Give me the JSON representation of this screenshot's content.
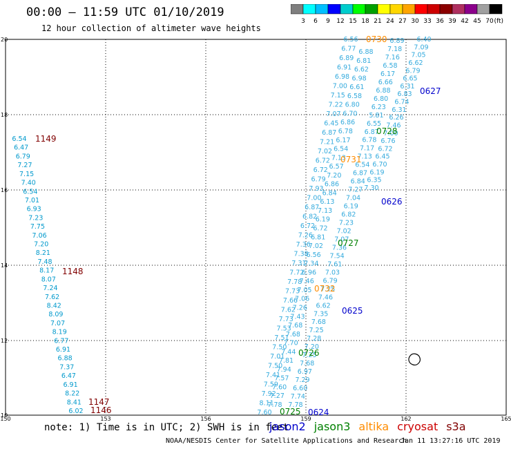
{
  "header": {
    "title": "00:00 – 11:59 UTC 01/10/2019",
    "subtitle": "12 hour collection of altimeter wave heights"
  },
  "colorbar": {
    "unit": "(ft)",
    "colors": [
      "#7f7f7f",
      "#00ffff",
      "#00bfff",
      "#0000ff",
      "#00cdcd",
      "#00ff00",
      "#00a000",
      "#ffff00",
      "#ffd700",
      "#ffa500",
      "#ff0000",
      "#cd0000",
      "#8b0000",
      "#b03060",
      "#8b008b",
      "#a0a0a0",
      "#000000"
    ],
    "labels": [
      "3",
      "6",
      "9",
      "12",
      "15",
      "18",
      "21",
      "24",
      "27",
      "30",
      "33",
      "36",
      "39",
      "42",
      "45",
      "70"
    ]
  },
  "axes": {
    "x_ticks": [
      "150",
      "153",
      "156",
      "159",
      "162",
      "165"
    ],
    "y_ticks": [
      "20",
      "18",
      "16",
      "14",
      "12",
      "10"
    ]
  },
  "swaths": {
    "west": {
      "color": "#0099cc",
      "values": [
        "6.54",
        "6.47",
        "6.79",
        "7.27",
        "7.15",
        "7.40",
        "6.54",
        "7.01",
        "6.93",
        "7.23",
        "7.75",
        "7.06",
        "7.20",
        "8.21",
        "7.48",
        "8.17",
        "8.07",
        "7.24",
        "7.62",
        "8.42",
        "8.09",
        "7.07",
        "8.19",
        "6.77",
        "6.91",
        "6.88",
        "7.37",
        "6.47",
        "6.91",
        "8.22",
        "8.41",
        "6.02"
      ]
    },
    "a": {
      "color": "#33aadd",
      "values": [
        "6.56",
        "6.77",
        "6.89",
        "6.91",
        "6.98",
        "7.00",
        "7.15",
        "7.22",
        "7.07",
        "6.45",
        "6.87",
        "7.21",
        "7.02",
        "6.72",
        "6.72",
        "6.79",
        "7.93",
        "7.00",
        "6.87",
        "6.82",
        "6.72",
        "7.26",
        "7.36",
        "7.38",
        "7.31",
        "7.72",
        "7.78",
        "7.73",
        "7.66",
        "7.62",
        "7.73",
        "7.53",
        "7.51",
        "7.50",
        "7.01",
        "7.50",
        "7.41",
        "7.59",
        "7.92",
        "8.11",
        "7.60"
      ]
    },
    "b": {
      "color": "#33aadd",
      "values": [
        "6.88",
        "6.81",
        "6.62",
        "6.98",
        "6.61",
        "6.58",
        "6.80",
        "6.70",
        "6.86",
        "6.78",
        "6.17",
        "6.54",
        "7.13",
        "6.57",
        "7.20",
        "6.86",
        "6.84",
        "6.13",
        "7.13",
        "6.19",
        "6.72",
        "6.81",
        "7.02",
        "6.56",
        "7.34",
        "6.96",
        "7.46",
        "7.05",
        "7.06",
        "7.26",
        "7.43",
        "7.68",
        "7.68",
        "7.70",
        "7.44",
        "7.81",
        "7.94",
        "7.57",
        "7.60",
        "7.27",
        "7.78"
      ]
    },
    "c": {
      "color": "#33aadd",
      "values": [
        "6.89",
        "7.18",
        "7.16",
        "6.58",
        "6.17",
        "6.66",
        "6.88",
        "6.80",
        "6.23",
        "5.81",
        "6.55",
        "6.87",
        "6.78",
        "7.17",
        "7.13",
        "6.54",
        "6.87",
        "6.84",
        "7.27",
        "7.04",
        "6.19",
        "6.82",
        "7.23",
        "7.02",
        "7.07",
        "7.36",
        "7.54",
        "7.61",
        "7.03",
        "6.79",
        "7.25",
        "7.46",
        "6.62",
        "7.35",
        "7.68",
        "7.25",
        "7.28",
        "7.20",
        "7.25",
        "7.68",
        "6.97",
        "7.29",
        "6.60",
        "7.74",
        "7.78"
      ]
    },
    "d": {
      "color": "#33aadd",
      "values": [
        "6.40",
        "7.09",
        "7.05",
        "6.62",
        "6.79",
        "6.65",
        "6.31",
        "6.83",
        "6.74",
        "6.31",
        "6.26",
        "7.46",
        "7.00",
        "6.76",
        "6.72",
        "6.45",
        "6.70",
        "6.19",
        "6.35",
        "7.30"
      ]
    }
  },
  "passes": [
    {
      "label": "1149",
      "color": "#800000"
    },
    {
      "label": "1148",
      "color": "#800000"
    },
    {
      "label": "1147",
      "color": "#800000"
    },
    {
      "label": "1146",
      "color": "#800000"
    },
    {
      "label": "0730",
      "color": "#ff8c00"
    },
    {
      "label": "0731",
      "color": "#ff8c00"
    },
    {
      "label": "0732",
      "color": "#ff8c00"
    },
    {
      "label": "0728",
      "color": "#008000"
    },
    {
      "label": "0727",
      "color": "#008000"
    },
    {
      "label": "0726",
      "color": "#008000"
    },
    {
      "label": "0725",
      "color": "#008000"
    },
    {
      "label": "0627",
      "color": "#0000cc"
    },
    {
      "label": "0626",
      "color": "#0000cc"
    },
    {
      "label": "0625",
      "color": "#0000cc"
    },
    {
      "label": "0624",
      "color": "#0000cc"
    }
  ],
  "footer": {
    "note": "note:  1) Time is in UTC;  2) SWH is in feet",
    "satellites": [
      {
        "name": "jason2",
        "color": "#0000cc"
      },
      {
        "name": "jason3",
        "color": "#008000"
      },
      {
        "name": "altika",
        "color": "#ff8c00"
      },
      {
        "name": "cryosat",
        "color": "#cc0000"
      },
      {
        "name": "s3a",
        "color": "#800000"
      }
    ],
    "credit": "NOAA/NESDIS Center for Satellite Applications and Research",
    "timestamp": "Jan 11 13:27:16 UTC 2019"
  }
}
